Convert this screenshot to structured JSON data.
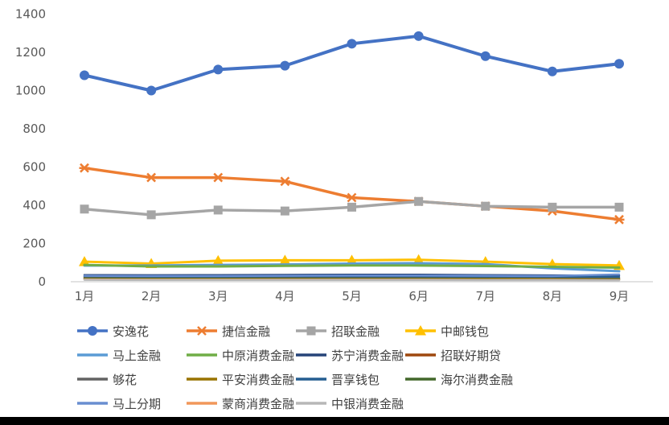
{
  "styles": {
    "background": "#FFFFFF",
    "axis_line_color": "#D9D9D9",
    "tick_label_color": "#595959",
    "legend_text_color": "#404040",
    "bottom_bar_color": "#000000"
  },
  "chart_data": {
    "type": "line",
    "title": "",
    "xlabel": "",
    "ylabel": "",
    "categories": [
      "1月",
      "2月",
      "3月",
      "4月",
      "5月",
      "6月",
      "7月",
      "8月",
      "9月"
    ],
    "ylim": [
      0,
      1400
    ],
    "yticks": [
      0,
      200,
      400,
      600,
      800,
      1000,
      1200,
      1400
    ],
    "grid": false,
    "legend_position": "bottom",
    "series": [
      {
        "name": "安逸花",
        "color": "#4472C4",
        "marker": "circle",
        "values": [
          1080,
          1000,
          1110,
          1130,
          1245,
          1285,
          1180,
          1100,
          1140
        ]
      },
      {
        "name": "捷信金融",
        "color": "#ED7D31",
        "marker": "asterisk",
        "values": [
          595,
          545,
          545,
          525,
          440,
          420,
          395,
          370,
          325
        ]
      },
      {
        "name": "招联金融",
        "color": "#A5A5A5",
        "marker": "square",
        "values": [
          380,
          350,
          375,
          370,
          390,
          420,
          395,
          390,
          390
        ]
      },
      {
        "name": "中邮钱包",
        "color": "#FFC000",
        "marker": "triangle",
        "values": [
          105,
          95,
          110,
          112,
          112,
          115,
          105,
          92,
          85
        ]
      },
      {
        "name": "马上金融",
        "color": "#5B9BD5",
        "marker": "none",
        "values": [
          85,
          85,
          88,
          90,
          95,
          97,
          92,
          70,
          55
        ]
      },
      {
        "name": "中原消费金融",
        "color": "#70AD47",
        "marker": "none",
        "values": [
          88,
          80,
          80,
          83,
          85,
          85,
          82,
          78,
          74
        ]
      },
      {
        "name": "苏宁消费金融",
        "color": "#264478",
        "marker": "none",
        "values": [
          35,
          34,
          35,
          36,
          37,
          37,
          35,
          33,
          32
        ]
      },
      {
        "name": "招联好期贷",
        "color": "#9E480E",
        "marker": "none",
        "values": [
          24,
          23,
          23,
          23,
          23,
          23,
          22,
          21,
          20
        ]
      },
      {
        "name": "够花",
        "color": "#636363",
        "marker": "none",
        "values": [
          21,
          20,
          20,
          20,
          20,
          20,
          19,
          18,
          17
        ]
      },
      {
        "name": "平安消费金融",
        "color": "#997300",
        "marker": "none",
        "values": [
          18,
          17,
          17,
          17,
          17,
          17,
          16,
          15,
          14
        ]
      },
      {
        "name": "晋享钱包",
        "color": "#255E91",
        "marker": "none",
        "values": [
          28,
          27,
          27,
          28,
          28,
          28,
          27,
          26,
          25
        ]
      },
      {
        "name": "海尔消费金融",
        "color": "#43682B",
        "marker": "none",
        "values": [
          15,
          14,
          14,
          14,
          14,
          14,
          13,
          12,
          12
        ]
      },
      {
        "name": "马上分期",
        "color": "#698ED0",
        "marker": "none",
        "values": [
          31,
          30,
          30,
          31,
          32,
          32,
          31,
          30,
          38
        ]
      },
      {
        "name": "蒙商消费金融",
        "color": "#F1975A",
        "marker": "none",
        "values": [
          12,
          11,
          11,
          11,
          11,
          11,
          10,
          10,
          9
        ]
      },
      {
        "name": "中银消费金融",
        "color": "#B7B7B7",
        "marker": "none",
        "values": [
          10,
          9,
          9,
          9,
          9,
          9,
          8,
          8,
          7
        ]
      }
    ]
  }
}
